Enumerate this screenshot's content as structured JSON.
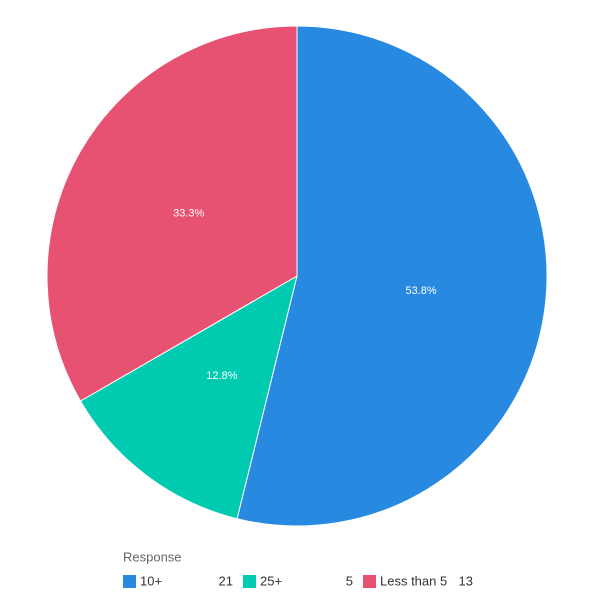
{
  "chart_data": {
    "type": "pie",
    "legend_title": "Response",
    "series": [
      {
        "name": "10+",
        "color": "#2889e0",
        "count": 21
      },
      {
        "name": "25+",
        "color": "#00cbb0",
        "count": 5
      },
      {
        "name": "Less than 5",
        "color": "#e75172",
        "count": 13
      }
    ],
    "values": [
      53.8,
      12.8,
      33.3
    ],
    "value_labels": [
      "53.8%",
      "12.8%",
      "33.3%"
    ]
  }
}
